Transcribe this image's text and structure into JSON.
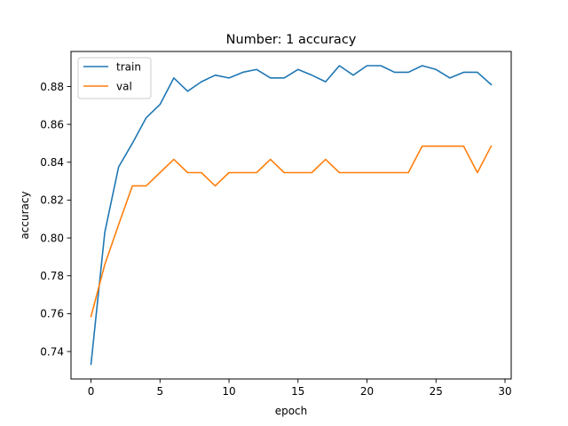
{
  "chart_data": {
    "type": "line",
    "title": "Number: 1 accuracy",
    "xlabel": "epoch",
    "ylabel": "accuracy",
    "xlim": [
      -1.45,
      30.45
    ],
    "ylim": [
      0.7255,
      0.8985
    ],
    "xticks": [
      0,
      5,
      10,
      15,
      20,
      25,
      30
    ],
    "yticks": [
      0.74,
      0.76,
      0.78,
      0.8,
      0.82,
      0.84,
      0.86,
      0.88
    ],
    "xtick_labels": [
      "0",
      "5",
      "10",
      "15",
      "20",
      "25",
      "30"
    ],
    "ytick_labels": [
      "0.74",
      "0.76",
      "0.78",
      "0.80",
      "0.82",
      "0.84",
      "0.86",
      "0.88"
    ],
    "grid": false,
    "legend_position": "upper-left",
    "x": [
      0,
      1,
      2,
      3,
      4,
      5,
      6,
      7,
      8,
      9,
      10,
      11,
      12,
      13,
      14,
      15,
      16,
      17,
      18,
      19,
      20,
      21,
      22,
      23,
      24,
      25,
      26,
      27,
      28,
      29
    ],
    "series": [
      {
        "name": "train",
        "color": "#1f77b4",
        "values": [
          0.7333,
          0.803,
          0.8375,
          0.85,
          0.8635,
          0.8705,
          0.8845,
          0.8775,
          0.8825,
          0.886,
          0.8845,
          0.8875,
          0.889,
          0.8845,
          0.8845,
          0.889,
          0.886,
          0.8825,
          0.891,
          0.886,
          0.891,
          0.891,
          0.8875,
          0.8875,
          0.891,
          0.889,
          0.8845,
          0.8875,
          0.8875,
          0.881
        ]
      },
      {
        "name": "val",
        "color": "#ff7f0e",
        "values": [
          0.7585,
          0.786,
          0.807,
          0.8275,
          0.8275,
          0.8345,
          0.8415,
          0.8345,
          0.8345,
          0.8275,
          0.8345,
          0.8345,
          0.8345,
          0.8415,
          0.8345,
          0.8345,
          0.8345,
          0.8415,
          0.8345,
          0.8345,
          0.8345,
          0.8345,
          0.8345,
          0.8345,
          0.8485,
          0.8485,
          0.8485,
          0.8485,
          0.8345,
          0.8485
        ]
      }
    ]
  }
}
